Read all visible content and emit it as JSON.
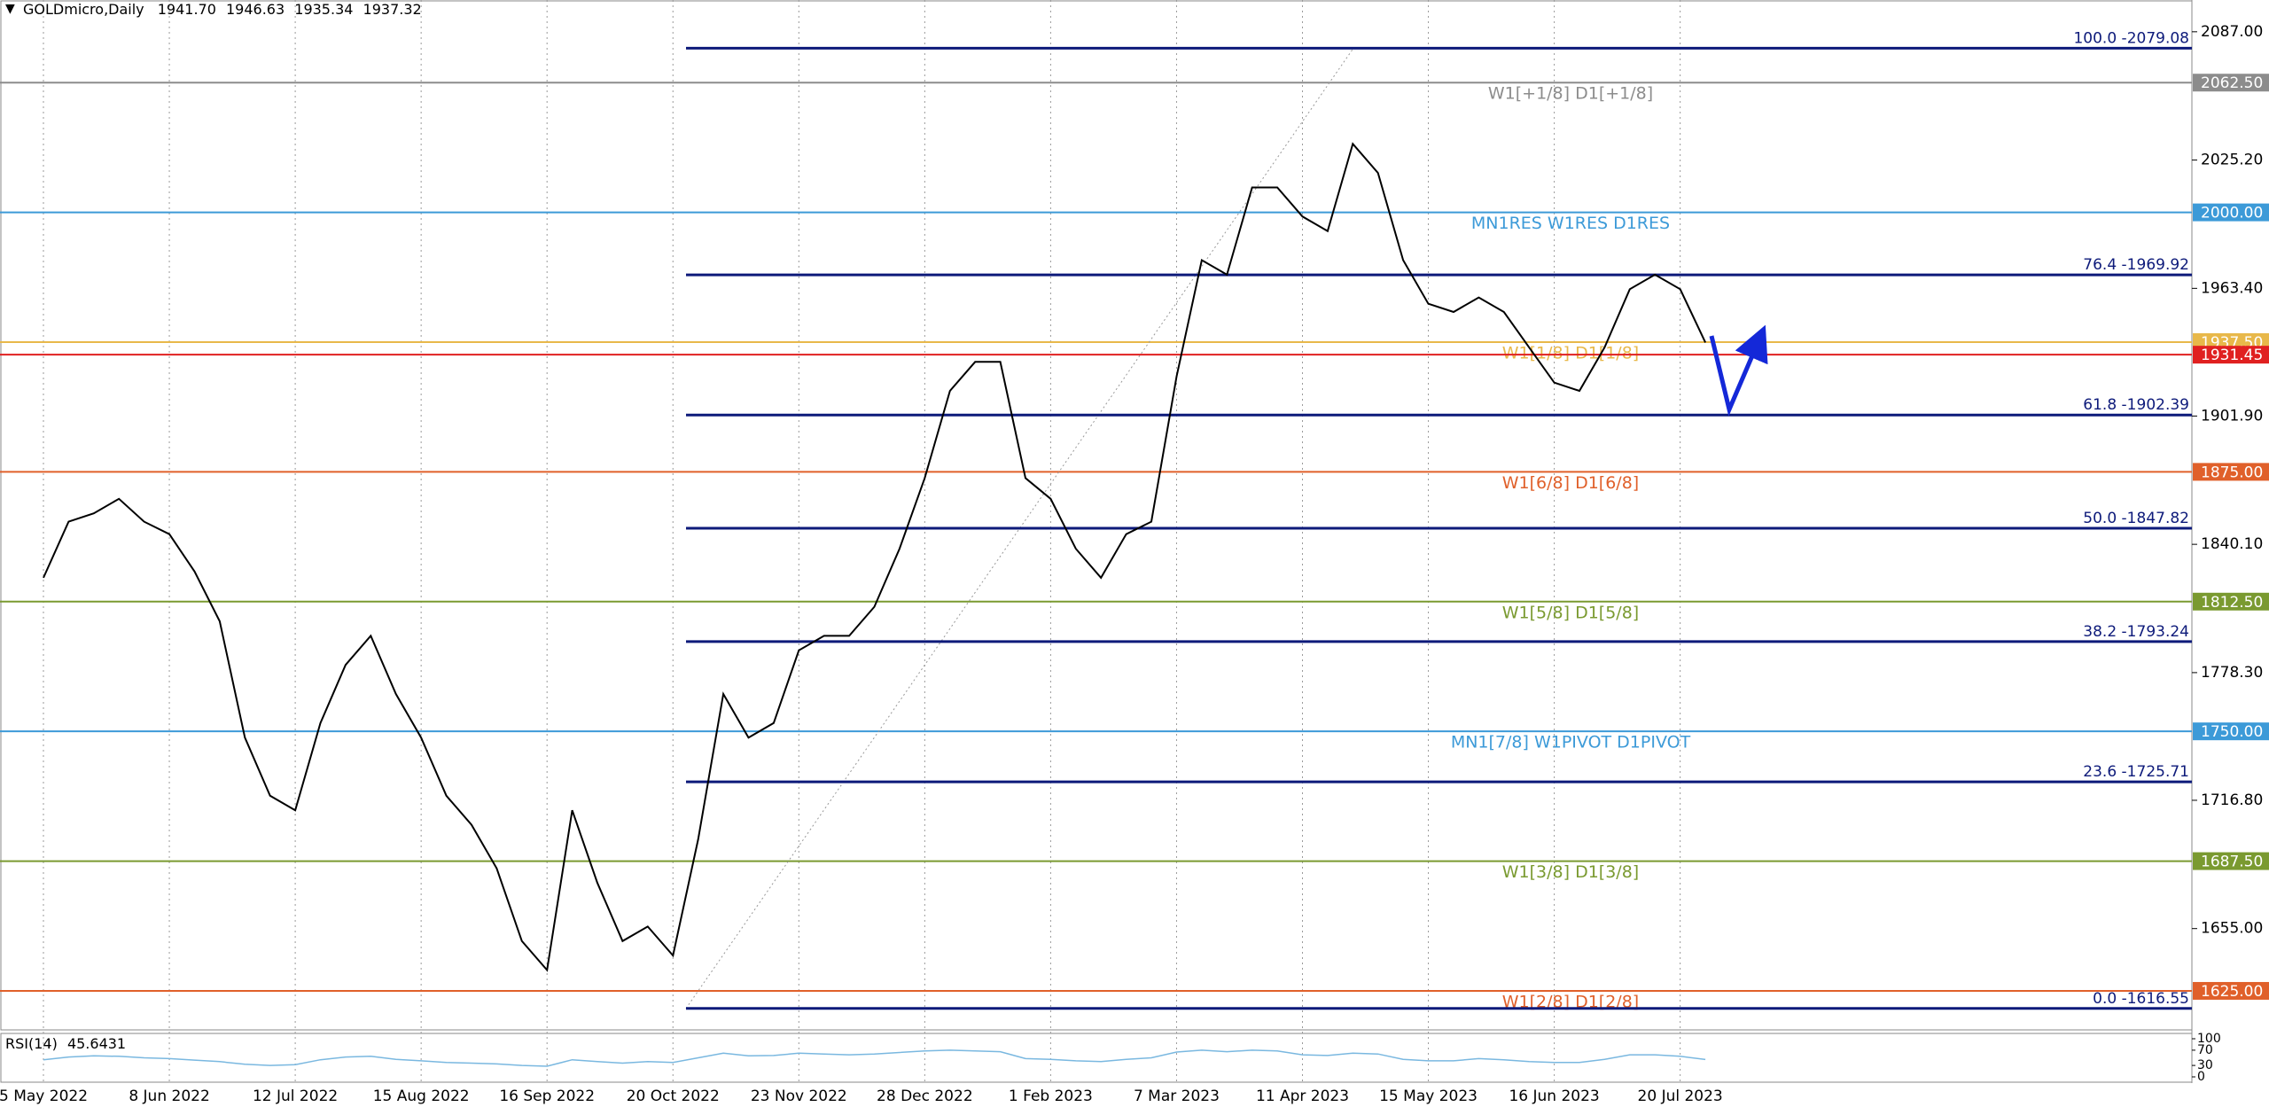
{
  "chart_data": {
    "type": "line",
    "title": "GOLDmicro,Daily",
    "open": {
      "value": 1941.7,
      "label": "1941.70"
    },
    "high": 1946.63,
    "low": 1935.34,
    "categories": [
      "5 May 2022",
      null,
      null,
      null,
      null,
      "8 Jun 2022",
      null,
      null,
      null,
      null,
      "12 Jul 2022",
      null,
      null,
      null,
      null,
      "15 Aug 2022",
      null,
      null,
      null,
      null,
      "16 Sep 2022",
      null,
      null,
      null,
      null,
      "20 Oct 2022",
      null,
      null,
      null,
      null,
      "23 Nov 2022",
      null,
      null,
      null,
      null,
      "28 Dec 2022",
      null,
      null,
      null,
      null,
      "1 Feb 2023",
      null,
      null,
      null,
      null,
      "7 Mar 2023",
      null,
      null,
      null,
      null,
      "11 Apr 2023",
      null,
      null,
      null,
      null,
      "15 May 2023",
      null,
      null,
      null,
      null,
      "16 Jun 2023",
      null,
      null,
      null,
      null,
      "20 Jul 2023",
      null
    ],
    "values": [
      1824,
      1851,
      1855,
      1862,
      1851,
      1845,
      1827,
      1803,
      1747,
      1719,
      1712,
      1754,
      1782,
      1796,
      1768,
      1747,
      1719,
      1705,
      1684,
      1649,
      1635,
      1712,
      1677,
      1649,
      1656,
      1642,
      1698,
      1768,
      1747,
      1754,
      1789,
      1796,
      1796,
      1810,
      1838,
      1872,
      1914,
      1928,
      1928,
      1872,
      1862,
      1838,
      1824,
      1845,
      1851,
      1921,
      1977,
      1970,
      2012,
      2012,
      1998,
      1991,
      2033,
      2019,
      1977,
      1956,
      1952,
      1959,
      1952,
      1935,
      1918,
      1914,
      1935,
      1963,
      1970,
      1963,
      1937.32
    ],
    "color": "#000000",
    "ylim": [
      1606.2,
      2102.3
    ],
    "yticks": [
      {
        "value": 2087,
        "label": "2087.00"
      },
      {
        "value": 2025.2,
        "label": "2025.20"
      },
      {
        "value": 1963.4,
        "label": "1963.40"
      },
      {
        "value": 1901.9,
        "label": "1901.90"
      },
      {
        "value": 1840.1,
        "label": "1840.10"
      },
      {
        "value": 1778.3,
        "label": "1778.30"
      },
      {
        "value": 1716.8,
        "label": "1716.80"
      },
      {
        "value": 1655,
        "label": "1655.00"
      }
    ],
    "levels": [
      {
        "value": 2062.5,
        "label": "2062.50",
        "text": "W1[+1/8] D1[+1/8]",
        "color": "#8c8c8c"
      },
      {
        "value": 2000,
        "label": "2000.00",
        "text": "MN1RES W1RES D1RES",
        "color": "#3c9ad8"
      },
      {
        "value": 1937.5,
        "label": "1937.50",
        "text": "W1[1/8] D1[1/8]",
        "color": "#e8b84a"
      },
      {
        "value": 1931.45,
        "label": "1931.45",
        "color": "#e02020"
      },
      {
        "value": 1875,
        "label": "1875.00",
        "text": "W1[6/8] D1[6/8]",
        "color": "#e0602a"
      },
      {
        "value": 1812.5,
        "label": "1812.50",
        "text": "W1[5/8] D1[5/8]",
        "color": "#7a9a30"
      },
      {
        "value": 1750,
        "label": "1750.00",
        "text": "MN1[7/8] W1PIVOT D1PIVOT",
        "color": "#3c9ad8"
      },
      {
        "value": 1687.5,
        "label": "1687.50",
        "text": "W1[3/8] D1[3/8]",
        "color": "#7a9a30"
      },
      {
        "value": 1625,
        "label": "1625.00",
        "text": "W1[2/8] D1[2/8]",
        "color": "#e0602a"
      }
    ],
    "fib_color": "#0d1a7a",
    "fibs": [
      {
        "value": 2079.08,
        "label": "100.0 -2079.08"
      },
      {
        "value": 1969.92,
        "label": "76.4 -1969.92"
      },
      {
        "value": 1902.39,
        "label": "61.8 -1902.39"
      },
      {
        "value": 1847.82,
        "label": "50.0 -1847.82"
      },
      {
        "value": 1793.24,
        "label": "38.2 -1793.24"
      },
      {
        "value": 1725.71,
        "label": "23.6 -1725.71"
      },
      {
        "value": 1616.55,
        "label": "0.0 -1616.55"
      }
    ],
    "rsi": {
      "label": "RSI(14)",
      "color": "#7ab8e0",
      "ylim": [
        0,
        100
      ],
      "yticks": [
        100,
        70,
        30,
        0
      ],
      "values": [
        45,
        52,
        55,
        54,
        50,
        48,
        44,
        40,
        33,
        30,
        32,
        45,
        52,
        54,
        46,
        42,
        38,
        36,
        34,
        30,
        28,
        45,
        40,
        36,
        40,
        38,
        50,
        62,
        55,
        56,
        62,
        60,
        58,
        60,
        64,
        68,
        70,
        68,
        66,
        48,
        46,
        42,
        40,
        46,
        50,
        65,
        70,
        66,
        70,
        68,
        58,
        56,
        62,
        60,
        46,
        42,
        42,
        48,
        45,
        40,
        38,
        38,
        46,
        58,
        58,
        54,
        45.6431
      ]
    }
  }
}
